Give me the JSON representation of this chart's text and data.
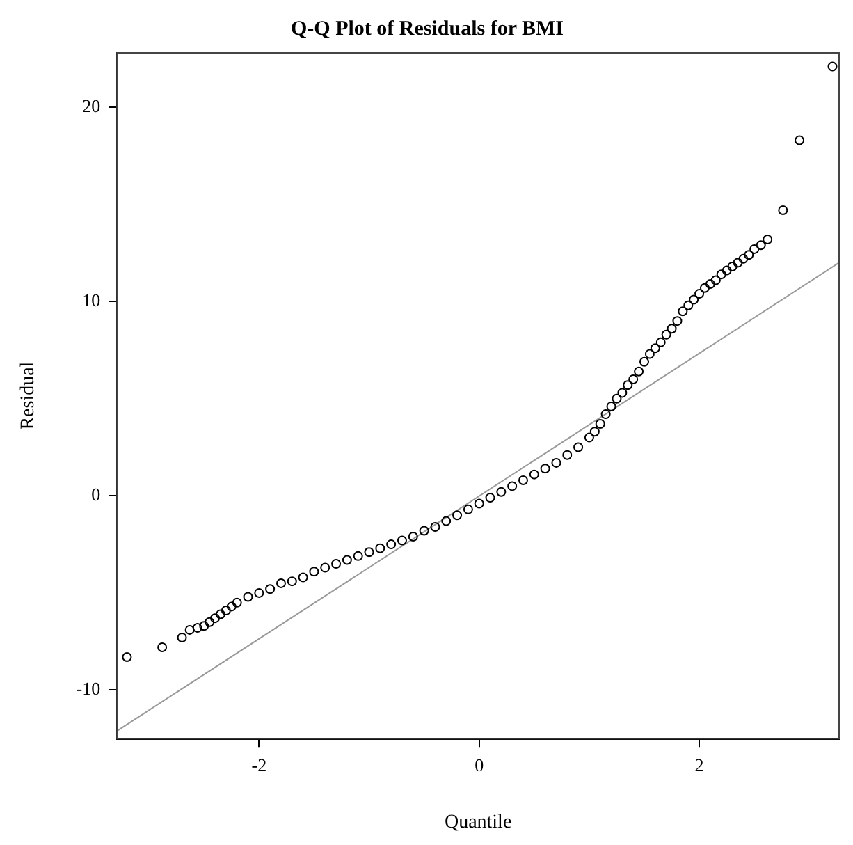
{
  "chart_data": {
    "type": "scatter",
    "title": "Q-Q Plot of Residuals for BMI",
    "xlabel": "Quantile",
    "ylabel": "Residual",
    "xlim": [
      -3.29,
      3.27
    ],
    "ylim": [
      -12.5,
      22.8
    ],
    "xticks": [
      -2,
      0,
      2
    ],
    "yticks": [
      -10,
      0,
      10,
      20
    ],
    "grid": false,
    "legend": false,
    "marker": "circle",
    "series": [
      {
        "type": "scatter",
        "color": "#000000",
        "x": [
          -3.2,
          -2.88,
          -2.7,
          -2.63,
          -2.56,
          -2.5,
          -2.45,
          -2.4,
          -2.35,
          -2.3,
          -2.25,
          -2.2,
          -2.1,
          -2.0,
          -1.9,
          -1.8,
          -1.7,
          -1.6,
          -1.5,
          -1.4,
          -1.3,
          -1.2,
          -1.1,
          -1.0,
          -0.9,
          -0.8,
          -0.7,
          -0.6,
          -0.5,
          -0.4,
          -0.3,
          -0.2,
          -0.1,
          0.0,
          0.1,
          0.2,
          0.3,
          0.4,
          0.5,
          0.6,
          0.7,
          0.8,
          0.9,
          1.0,
          1.05,
          1.1,
          1.15,
          1.2,
          1.25,
          1.3,
          1.35,
          1.4,
          1.45,
          1.5,
          1.55,
          1.6,
          1.65,
          1.7,
          1.75,
          1.8,
          1.85,
          1.9,
          1.95,
          2.0,
          2.05,
          2.1,
          2.15,
          2.2,
          2.25,
          2.3,
          2.35,
          2.4,
          2.45,
          2.5,
          2.56,
          2.62,
          2.76,
          2.91,
          3.21
        ],
        "values": [
          -8.3,
          -7.8,
          -7.3,
          -6.9,
          -6.8,
          -6.7,
          -6.5,
          -6.3,
          -6.1,
          -5.9,
          -5.7,
          -5.5,
          -5.2,
          -5.0,
          -4.8,
          -4.5,
          -4.4,
          -4.2,
          -3.9,
          -3.7,
          -3.5,
          -3.3,
          -3.1,
          -2.9,
          -2.7,
          -2.5,
          -2.3,
          -2.1,
          -1.8,
          -1.6,
          -1.3,
          -1.0,
          -0.7,
          -0.4,
          -0.1,
          0.2,
          0.5,
          0.8,
          1.1,
          1.4,
          1.7,
          2.1,
          2.5,
          3.0,
          3.3,
          3.7,
          4.2,
          4.6,
          5.0,
          5.3,
          5.7,
          6.0,
          6.4,
          6.9,
          7.3,
          7.6,
          7.9,
          8.3,
          8.6,
          9.0,
          9.5,
          9.8,
          10.1,
          10.4,
          10.7,
          10.9,
          11.1,
          11.4,
          11.6,
          11.8,
          12.0,
          12.2,
          12.4,
          12.7,
          12.9,
          13.2,
          14.7,
          18.3,
          22.1
        ]
      },
      {
        "type": "line",
        "color": "#999999",
        "marker": "none",
        "x": [
          -3.29,
          3.27
        ],
        "values": [
          -12.1,
          12.0
        ]
      }
    ]
  }
}
